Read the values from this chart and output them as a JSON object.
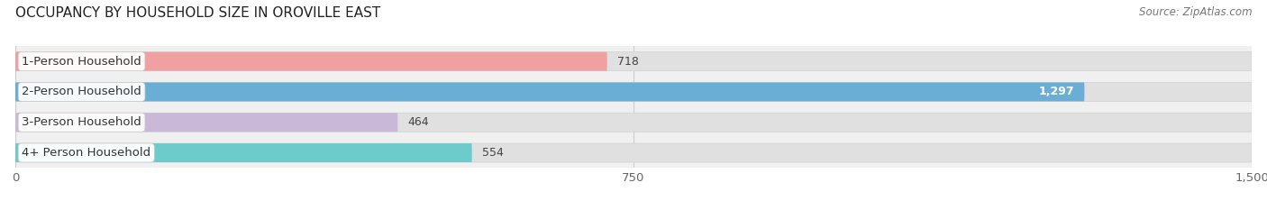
{
  "title": "OCCUPANCY BY HOUSEHOLD SIZE IN OROVILLE EAST",
  "source": "Source: ZipAtlas.com",
  "categories": [
    "1-Person Household",
    "2-Person Household",
    "3-Person Household",
    "4+ Person Household"
  ],
  "values": [
    718,
    1297,
    464,
    554
  ],
  "colors": [
    "#f0a0a0",
    "#6aaed6",
    "#c9b8d8",
    "#6dcbcb"
  ],
  "xlim": [
    0,
    1500
  ],
  "xticks": [
    0,
    750,
    1500
  ],
  "bar_height": 0.62,
  "title_fontsize": 11,
  "label_fontsize": 9.5,
  "value_fontsize": 9,
  "source_fontsize": 8.5,
  "bg_color": "#ffffff",
  "bar_bg_color": "#e8e8e8",
  "row_bg_color": "#f5f5f5"
}
